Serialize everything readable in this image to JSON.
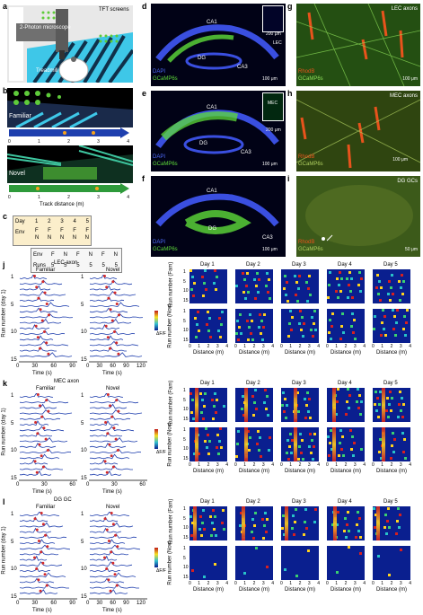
{
  "panels": {
    "a": "a",
    "b": "b",
    "c": "c",
    "d": "d",
    "e": "e",
    "f": "f",
    "g": "g",
    "h": "h",
    "i": "i",
    "j": "j",
    "k": "k",
    "l": "l"
  },
  "a_panel": {
    "tft": "TFT screens",
    "microscope": "2-Photon microscope",
    "treadmill": "Treadmill"
  },
  "b_panel": {
    "familiar": "Familiar",
    "novel": "Novel",
    "xlabel": "Track distance (m)",
    "ticks": [
      "0",
      "1",
      "2",
      "3",
      "4"
    ]
  },
  "c_panel": {
    "day_label": "Day",
    "days": [
      "1",
      "2",
      "3",
      "4",
      "5"
    ],
    "env_label": "Env",
    "env_cols": [
      [
        "F",
        "N"
      ],
      [
        "F",
        "N"
      ],
      [
        "F",
        "N"
      ],
      [
        "F",
        "N"
      ],
      [
        "F",
        "N"
      ]
    ],
    "env_row_label": "Env",
    "env_row": [
      "F",
      "N",
      "F",
      "N",
      "F",
      "N"
    ],
    "runs_label": "Runs",
    "runs_row": [
      "5",
      "5",
      "5",
      "5",
      "5",
      "5"
    ]
  },
  "histology": {
    "d": {
      "ca1": "CA1",
      "dg": "DG",
      "ca3": "CA3",
      "lec": "LEC",
      "dapi": "DAPI",
      "gcamp": "GCaMP6s",
      "scale": "100 μm",
      "inset_scale": "200 μm"
    },
    "e": {
      "ca1": "CA1",
      "dg": "DG",
      "ca3": "CA3",
      "mec": "MEC",
      "dapi": "DAPI",
      "gcamp": "GCaMP6s",
      "scale": "100 μm",
      "inset_scale": "200 μm"
    },
    "f": {
      "ca1": "CA1",
      "dg": "DG",
      "ca3": "CA3",
      "dapi": "DAPI",
      "gcamp": "GCaMP6s",
      "scale": "100 μm"
    },
    "g": {
      "title": "LEC axons",
      "rhodb": "RhodB",
      "gcamp": "GCaMP6s",
      "scale": "100 μm"
    },
    "h": {
      "title": "MEC axons",
      "rhodb": "RhodB",
      "gcamp": "GCaMP6s",
      "scale": "100 μm"
    },
    "i": {
      "title": "DG GCs",
      "rhodb": "RhodB",
      "gcamp": "GCaMP6s",
      "scale": "50 μm"
    }
  },
  "traces": {
    "j": {
      "title": "LEC axon",
      "familiar": "Familiar",
      "novel": "Novel",
      "ylabel": "Run number (day 1)",
      "xlabel": "Time (s)",
      "fam_ticks": [
        "0",
        "30",
        "60",
        "90"
      ],
      "nov_ticks": [
        "0",
        "30",
        "60",
        "90",
        "120"
      ],
      "yticks": [
        "1",
        "5",
        "10",
        "15"
      ],
      "cbar": "ΔF/F"
    },
    "k": {
      "title": "MEC axon",
      "familiar": "Familiar",
      "novel": "Novel",
      "ylabel": "Run number (day 1)",
      "xlabel": "Time (s)",
      "fam_ticks": [
        "0",
        "30",
        "60"
      ],
      "nov_ticks": [
        "0",
        "30",
        "60"
      ],
      "yticks": [
        "1",
        "5",
        "10",
        "15"
      ],
      "cbar": "ΔF/F"
    },
    "l": {
      "title": "DG GC",
      "familiar": "Familiar",
      "novel": "Novel",
      "ylabel": "Run number (day 1)",
      "xlabel": "Time (s)",
      "fam_ticks": [
        "0",
        "30",
        "60",
        "90"
      ],
      "nov_ticks": [
        "0",
        "30",
        "60",
        "90",
        "120"
      ],
      "yticks": [
        "1",
        "5",
        "10",
        "15"
      ],
      "cbar": "ΔF/F"
    }
  },
  "heatmaps": {
    "days": [
      "Day 1",
      "Day 2",
      "Day 3",
      "Day 4",
      "Day 5"
    ],
    "xlabel": "Distance (m)",
    "xticks": [
      "0",
      "1",
      "2",
      "3",
      "4"
    ],
    "yticks": [
      "1",
      "5",
      "10",
      "15"
    ],
    "ylabel_fam": "Run number (Fam)",
    "ylabel_nov": "Run number (Nov)"
  }
}
